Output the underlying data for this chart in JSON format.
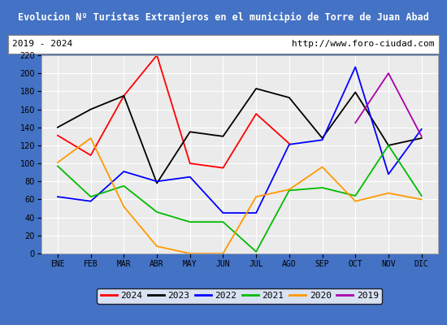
{
  "title": "Evolucion Nº Turistas Extranjeros en el municipio de Torre de Juan Abad",
  "title_bg": "#4472c4",
  "subtitle_left": "2019 - 2024",
  "subtitle_right": "http://www.foro-ciudad.com",
  "months": [
    "ENE",
    "FEB",
    "MAR",
    "ABR",
    "MAY",
    "JUN",
    "JUL",
    "AGO",
    "SEP",
    "OCT",
    "NOV",
    "DIC"
  ],
  "series": {
    "2024": [
      131,
      109,
      175,
      220,
      100,
      95,
      155,
      122,
      null,
      null,
      null,
      null
    ],
    "2023": [
      140,
      160,
      175,
      78,
      135,
      130,
      183,
      173,
      128,
      179,
      120,
      128
    ],
    "2022": [
      63,
      58,
      91,
      80,
      85,
      45,
      45,
      121,
      126,
      207,
      88,
      138
    ],
    "2021": [
      97,
      63,
      75,
      46,
      35,
      35,
      2,
      70,
      73,
      64,
      120,
      64
    ],
    "2020": [
      101,
      128,
      52,
      8,
      0,
      0,
      63,
      71,
      96,
      58,
      67,
      60
    ],
    "2019": [
      null,
      null,
      null,
      null,
      null,
      null,
      null,
      null,
      null,
      145,
      200,
      130
    ]
  },
  "colors": {
    "2024": "#ff0000",
    "2023": "#000000",
    "2022": "#0000ff",
    "2021": "#00bb00",
    "2020": "#ff9900",
    "2019": "#aa00aa"
  },
  "ylim": [
    0,
    220
  ],
  "yticks": [
    0,
    20,
    40,
    60,
    80,
    100,
    120,
    140,
    160,
    180,
    200,
    220
  ],
  "bg_color": "#ffffff",
  "grid_color": "#cccccc",
  "border_color": "#4472c4",
  "plot_bg": "#e8e8e8"
}
